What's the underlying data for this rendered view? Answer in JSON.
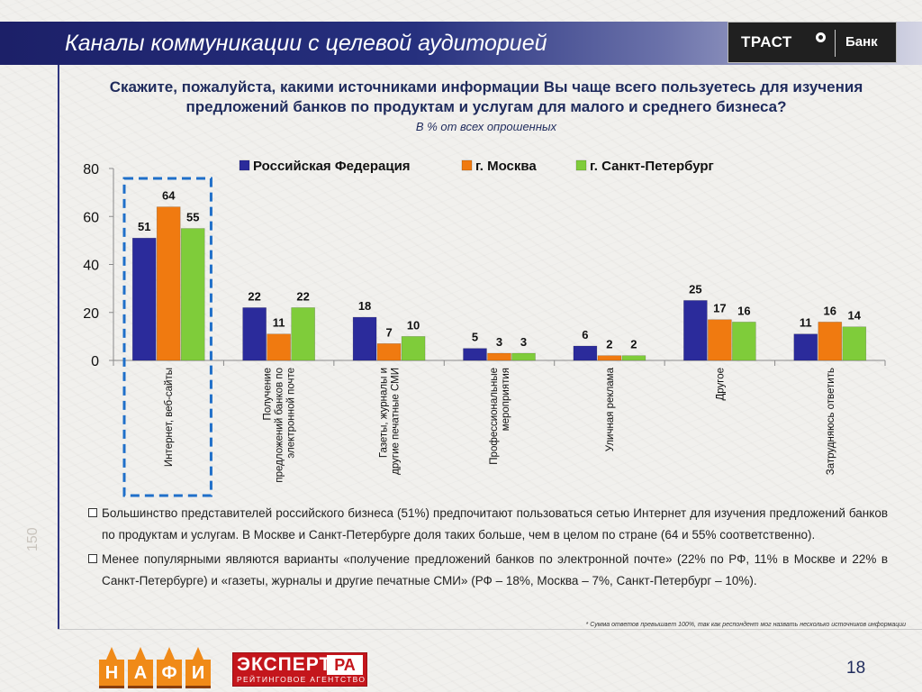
{
  "header": {
    "title": "Каналы коммуникации с целевой аудиторией",
    "brand_name": "ТРАСТ",
    "brand_sub": "Банк"
  },
  "question": "Скажите, пожалуйста, какими источниками информации Вы чаще всего пользуетесь для изучения предложений банков по продуктам и услугам для малого и среднего бизнеса?",
  "question_note": "В % от всех опрошенных",
  "chart_data": {
    "type": "bar",
    "categories": [
      "Интернет, веб-сайты",
      "Получение предложений банков по электронной почте",
      "Газеты, журналы и другие печатные СМИ",
      "Профессиональные мероприятия",
      "Уличная реклама",
      "Другое",
      "Затрудняюсь ответить"
    ],
    "category_lines": [
      [
        "Интернет, веб-сайты"
      ],
      [
        "Получение",
        "предложений банков по",
        "электронной почте"
      ],
      [
        "Газеты, журналы и",
        "другие печатные СМИ"
      ],
      [
        "Профессиональные",
        "мероприятия"
      ],
      [
        "Уличная реклама"
      ],
      [
        "Другое"
      ],
      [
        "Затрудняюсь ответить"
      ]
    ],
    "series": [
      {
        "name": "Российская Федерация",
        "values": [
          51,
          22,
          18,
          5,
          6,
          25,
          11
        ],
        "color": "#2b2b9b"
      },
      {
        "name": "г. Москва",
        "values": [
          64,
          11,
          7,
          3,
          2,
          17,
          16
        ],
        "color": "#f07a10"
      },
      {
        "name": "г. Санкт-Петербург",
        "values": [
          55,
          22,
          10,
          3,
          2,
          16,
          14
        ],
        "color": "#7fcc3a"
      }
    ],
    "ylim": [
      0,
      80
    ],
    "yticks": [
      0,
      20,
      40,
      60,
      80
    ],
    "grid": false,
    "legend": "top",
    "highlighted_category": "Интернет, веб-сайты"
  },
  "bullets": [
    "Большинство представителей российского бизнеса (51%) предпочитают пользоваться сетью Интернет для изучения предложений банков по продуктам и услугам. В Москве и Санкт-Петербурге доля таких больше, чем в целом по стране (64 и 55% соответственно).",
    "Менее популярными являются варианты «получение предложений банков по электронной почте» (22% по РФ, 11% в Москве и 22% в Санкт-Петербурге) и «газеты, журналы и другие печатные СМИ» (РФ – 18%, Москва – 7%, Санкт-Петербург – 10%)."
  ],
  "footnote": "* Сумма ответов превышает 100%, так как респондент мог назвать несколько источников информации",
  "side_mark": "150",
  "logos": {
    "nafi_letters": [
      "Н",
      "А",
      "Ф",
      "И"
    ],
    "expert_main": "ЭКСПЕРТ",
    "expert_ra": "РА",
    "expert_sub": "РЕЙТИНГОВОЕ АГЕНТСТВО"
  },
  "page_number": "18"
}
